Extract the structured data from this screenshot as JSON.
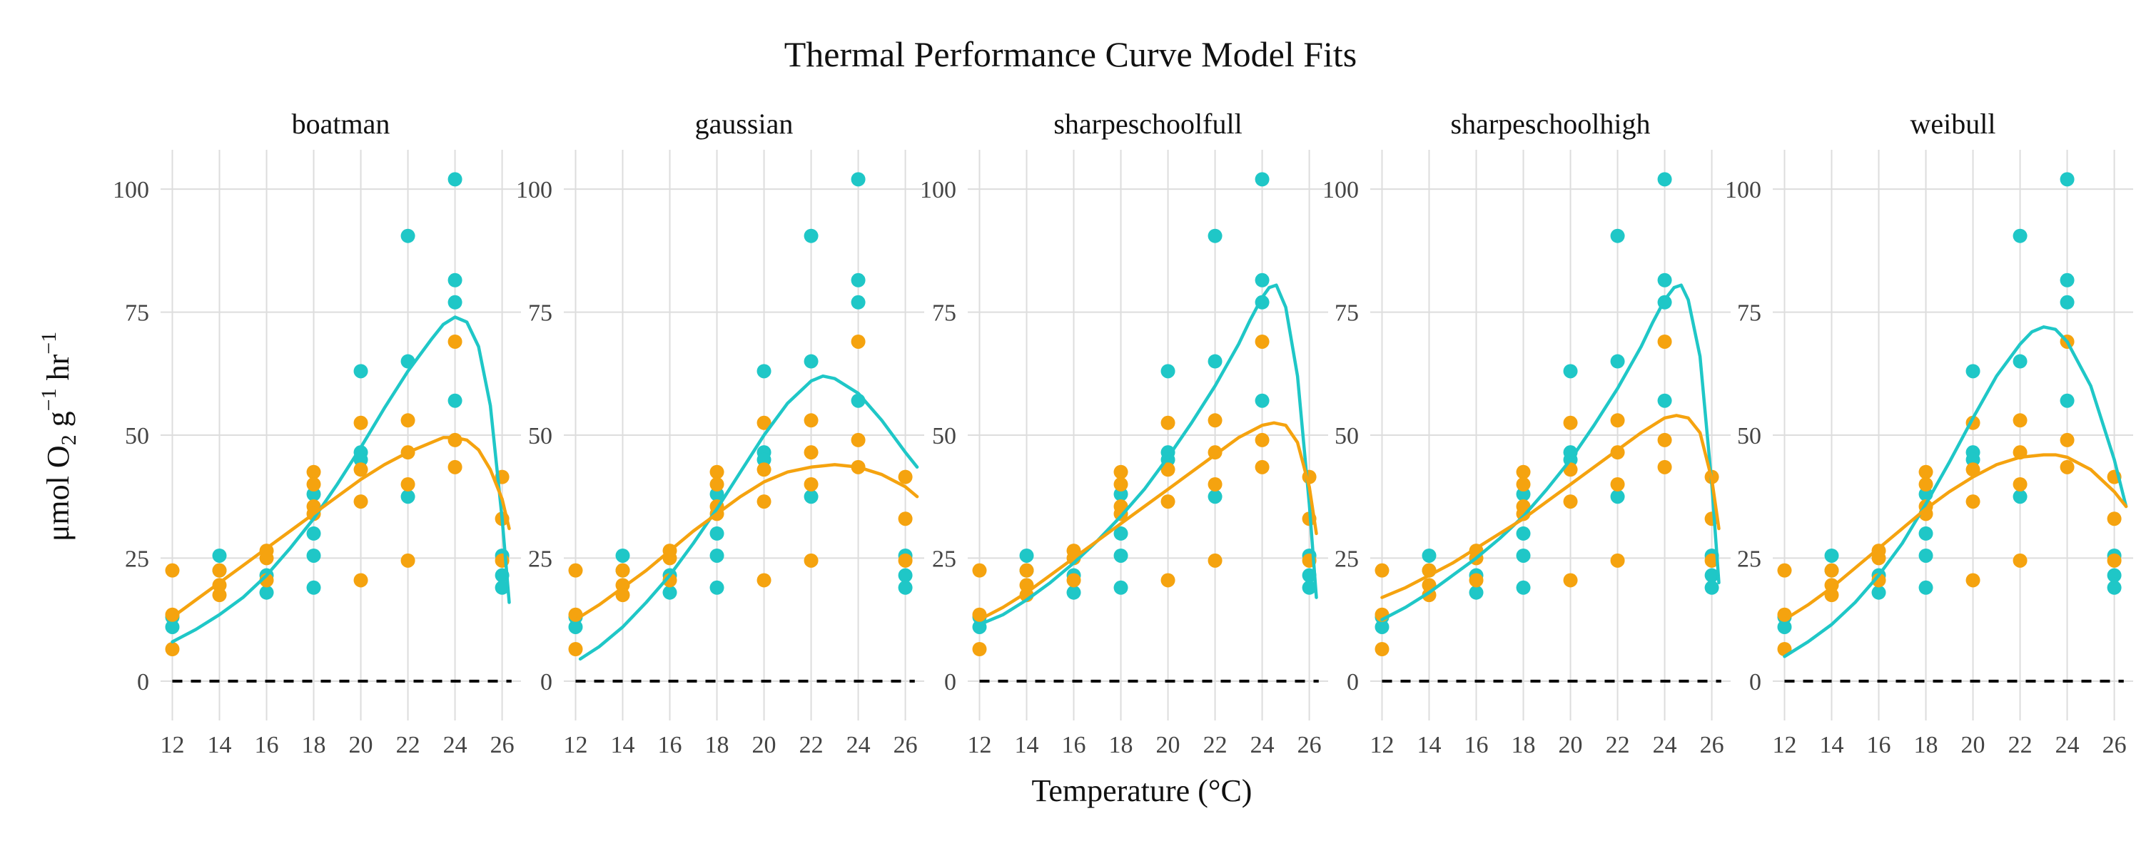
{
  "chart_data": {
    "type": "scatter",
    "title": "Thermal Performance Curve Model Fits",
    "xlabel": "Temperature (°C)",
    "ylabel": {
      "prefix": "μmol O",
      "sub": "2",
      "g": " g",
      "sup1": "−1",
      "hr": " hr",
      "sup2": "−1"
    },
    "xlim": [
      11.5,
      26.8
    ],
    "ylim": [
      -8,
      108
    ],
    "x_ticks": [
      12,
      14,
      16,
      18,
      20,
      22,
      24,
      26
    ],
    "y_ticks": [
      0,
      25,
      50,
      75,
      100
    ],
    "grid": true,
    "reference_line": {
      "y": 0,
      "style": "dashed",
      "color": "#000000"
    },
    "colors": {
      "teal": "#1FC7C7",
      "orange": "#F5A30F",
      "grid": "#DDDDDD"
    },
    "observations": {
      "teal": [
        [
          12,
          13
        ],
        [
          12,
          11
        ],
        [
          14,
          25.5
        ],
        [
          14,
          22.5
        ],
        [
          16,
          21.5
        ],
        [
          16,
          18
        ],
        [
          18,
          38
        ],
        [
          18,
          30
        ],
        [
          18,
          25.5
        ],
        [
          18,
          19
        ],
        [
          20,
          63
        ],
        [
          20,
          46.5
        ],
        [
          20,
          45
        ],
        [
          22,
          90.5
        ],
        [
          22,
          65
        ],
        [
          22,
          37.5
        ],
        [
          24,
          102
        ],
        [
          24,
          81.5
        ],
        [
          24,
          77
        ],
        [
          24,
          57
        ],
        [
          26,
          25.5
        ],
        [
          26,
          21.5
        ],
        [
          26,
          19
        ]
      ],
      "orange": [
        [
          12,
          22.5
        ],
        [
          12,
          13.5
        ],
        [
          12,
          6.5
        ],
        [
          14,
          22.5
        ],
        [
          14,
          19.5
        ],
        [
          14,
          17.5
        ],
        [
          16,
          26.5
        ],
        [
          16,
          25
        ],
        [
          16,
          20.5
        ],
        [
          18,
          42.5
        ],
        [
          18,
          40
        ],
        [
          18,
          35.5
        ],
        [
          18,
          34
        ],
        [
          20,
          52.5
        ],
        [
          20,
          43
        ],
        [
          20,
          36.5
        ],
        [
          20,
          20.5
        ],
        [
          22,
          53
        ],
        [
          22,
          46.5
        ],
        [
          22,
          40
        ],
        [
          22,
          24.5
        ],
        [
          24,
          69
        ],
        [
          24,
          49
        ],
        [
          24,
          43.5
        ],
        [
          26,
          41.5
        ],
        [
          26,
          33
        ],
        [
          26,
          24.5
        ]
      ]
    },
    "panels": [
      {
        "title": "boatman",
        "series": [
          {
            "color": "teal",
            "x": [
              12,
              13,
              14,
              15,
              16,
              17,
              18,
              19,
              20,
              21,
              22,
              23,
              23.5,
              24,
              24.5,
              25,
              25.5,
              26,
              26.3
            ],
            "y": [
              8,
              10.5,
              13.5,
              17,
              21.5,
              27,
              33,
              40,
              47.5,
              55.5,
              63,
              69.5,
              72.5,
              74,
              73,
              68,
              56,
              33,
              16
            ]
          },
          {
            "color": "orange",
            "x": [
              12,
              13,
              14,
              15,
              16,
              17,
              18,
              19,
              20,
              21,
              22,
              23,
              23.5,
              24,
              24.5,
              25,
              25.5,
              26,
              26.3
            ],
            "y": [
              13,
              16.5,
              20,
              23.5,
              27,
              30.5,
              34,
              37.5,
              41,
              44,
              46.5,
              48.5,
              49.5,
              49.5,
              49,
              47,
              43,
              37,
              31
            ]
          }
        ]
      },
      {
        "title": "gaussian",
        "series": [
          {
            "color": "teal",
            "x": [
              12.2,
              13,
              14,
              15,
              16,
              17,
              18,
              19,
              20,
              21,
              22,
              22.5,
              23,
              24,
              25,
              26,
              26.5
            ],
            "y": [
              4.5,
              7,
              11,
              16,
              21.5,
              28,
              35,
              42.5,
              50,
              56.5,
              61,
              62,
              61.5,
              58.5,
              53,
              46.5,
              43.5
            ]
          },
          {
            "color": "orange",
            "x": [
              12,
              13,
              14,
              15,
              16,
              17,
              18,
              19,
              20,
              21,
              22,
              23,
              24,
              25,
              26,
              26.5
            ],
            "y": [
              12.5,
              15.5,
              19,
              22.5,
              26.5,
              30.5,
              34,
              37.5,
              40.5,
              42.5,
              43.5,
              44,
              43.5,
              42,
              39.5,
              37.5
            ]
          }
        ]
      },
      {
        "title": "sharpeschoolfull",
        "series": [
          {
            "color": "teal",
            "x": [
              12,
              13,
              14,
              15,
              16,
              17,
              18,
              19,
              20,
              21,
              22,
              23,
              23.5,
              24,
              24.3,
              24.6,
              25,
              25.5,
              26,
              26.3
            ],
            "y": [
              11.5,
              13.5,
              16.5,
              20,
              24,
              28.5,
              33.5,
              39,
              45.5,
              52.5,
              60,
              68.5,
              73.5,
              78,
              80,
              80.5,
              76,
              62,
              36,
              17
            ]
          },
          {
            "color": "orange",
            "x": [
              12,
              13,
              14,
              15,
              16,
              17,
              18,
              19,
              20,
              21,
              22,
              23,
              24,
              24.5,
              25,
              25.5,
              26,
              26.3
            ],
            "y": [
              12.5,
              15,
              18,
              21.5,
              25,
              28.5,
              32,
              35.5,
              39,
              42.5,
              46,
              49.5,
              52,
              52.5,
              52,
              48.5,
              39.5,
              30
            ]
          }
        ]
      },
      {
        "title": "sharpeschoolhigh",
        "series": [
          {
            "color": "teal",
            "x": [
              12,
              13,
              14,
              15,
              16,
              17,
              18,
              19,
              20,
              21,
              22,
              23,
              23.5,
              24,
              24.4,
              24.7,
              25,
              25.5,
              26,
              26.3
            ],
            "y": [
              12.5,
              15,
              18,
              21.5,
              25,
              29,
              33.5,
              39,
              45,
              52,
              59.5,
              68,
              73,
              77.5,
              80,
              80.5,
              77.5,
              66,
              40,
              20
            ]
          },
          {
            "color": "orange",
            "x": [
              12,
              13,
              14,
              15,
              16,
              17,
              18,
              19,
              20,
              21,
              22,
              23,
              24,
              24.5,
              25,
              25.5,
              26,
              26.3
            ],
            "y": [
              17,
              19,
              21.5,
              24,
              27,
              30,
              33,
              36.5,
              40,
              43.5,
              47,
              50.5,
              53.5,
              54,
              53.5,
              50.5,
              41,
              31
            ]
          }
        ]
      },
      {
        "title": "weibull",
        "series": [
          {
            "color": "teal",
            "x": [
              12,
              13,
              14,
              15,
              16,
              17,
              18,
              19,
              20,
              21,
              22,
              22.5,
              23,
              23.5,
              24,
              25,
              26,
              26.5
            ],
            "y": [
              5,
              8,
              11.5,
              16,
              21.5,
              28,
              36,
              44.5,
              53.5,
              62,
              68.5,
              71,
              72,
              71.5,
              69,
              60,
              45,
              35.5
            ]
          },
          {
            "color": "orange",
            "x": [
              12,
              13,
              14,
              15,
              16,
              17,
              18,
              19,
              20,
              21,
              22,
              23,
              23.5,
              24,
              25,
              26,
              26.5
            ],
            "y": [
              12.5,
              15.5,
              19,
              23,
              27,
              31,
              35,
              38.5,
              41.5,
              44,
              45.5,
              46,
              46,
              45.5,
              43,
              38.5,
              35.5
            ]
          }
        ]
      }
    ]
  }
}
